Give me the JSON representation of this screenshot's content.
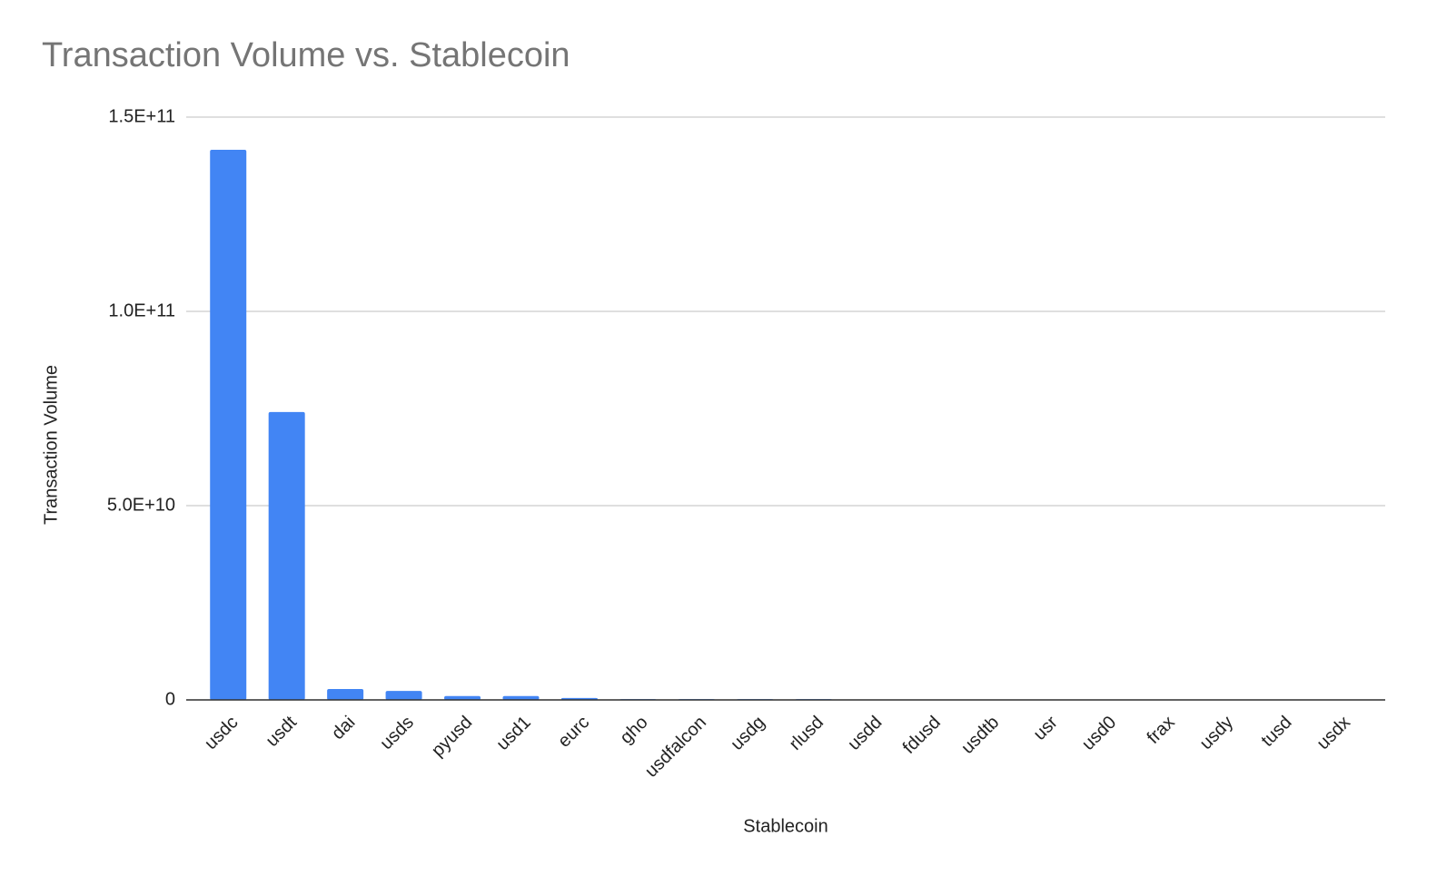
{
  "chart_data": {
    "type": "bar",
    "title": "Transaction Volume vs. Stablecoin",
    "x_label": "Stablecoin",
    "y_label": "Transaction Volume",
    "categories": [
      "usdc",
      "usdt",
      "dai",
      "usds",
      "pyusd",
      "usd1",
      "eurc",
      "gho",
      "usdfalcon",
      "usdg",
      "rlusd",
      "usdd",
      "fdusd",
      "usdtb",
      "usr",
      "usd0",
      "frax",
      "usdy",
      "tusd",
      "usdx"
    ],
    "values": [
      141600000000,
      74100000000,
      2800000000,
      2300000000,
      1000000000,
      1000000000,
      500000000,
      200000000,
      200000000,
      200000000,
      200000000,
      0,
      0,
      0,
      0,
      0,
      0,
      0,
      0,
      0
    ],
    "color": "#4285f4",
    "ylim": [
      0,
      150000000000
    ],
    "yticks": [
      0,
      {
        "value": 50000000000,
        "label": "5.0E+10"
      },
      {
        "value": 100000000000,
        "label": "1.0E+11"
      },
      {
        "value": 150000000000,
        "label": "1.5E+11"
      }
    ],
    "grid": true
  }
}
